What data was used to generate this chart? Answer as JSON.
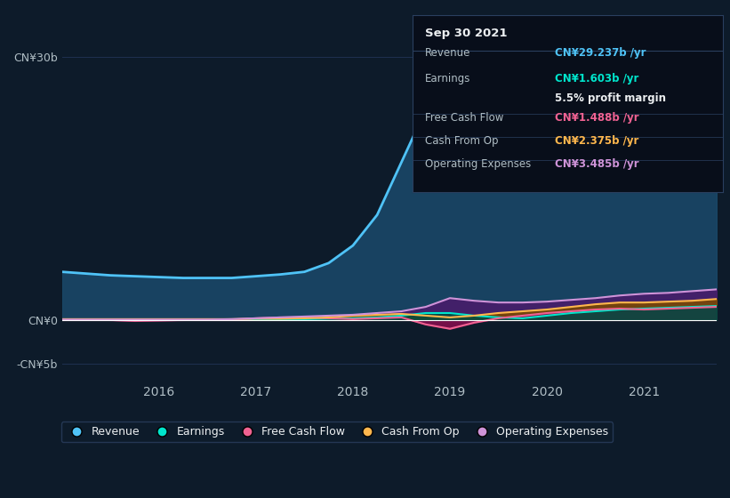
{
  "bg_color": "#0d1b2a",
  "plot_bg_color": "#0d1b2a",
  "title_text": "Sep 30 2021",
  "tooltip": {
    "Revenue": {
      "value": "CN¥29.237b /yr",
      "color": "#4fc3f7"
    },
    "Earnings": {
      "value": "CN¥1.603b /yr",
      "color": "#00e5cc"
    },
    "profit_margin": "5.5% profit margin",
    "Free Cash Flow": {
      "value": "CN¥1.488b /yr",
      "color": "#f06292"
    },
    "Cash From Op": {
      "value": "CN¥2.375b /yr",
      "color": "#ffb74d"
    },
    "Operating Expenses": {
      "value": "CN¥3.485b /yr",
      "color": "#ce93d8"
    }
  },
  "years": [
    2015.0,
    2015.25,
    2015.5,
    2015.75,
    2016.0,
    2016.25,
    2016.5,
    2016.75,
    2017.0,
    2017.25,
    2017.5,
    2017.75,
    2018.0,
    2018.25,
    2018.5,
    2018.75,
    2019.0,
    2019.25,
    2019.5,
    2019.75,
    2020.0,
    2020.25,
    2020.5,
    2020.75,
    2021.0,
    2021.25,
    2021.5,
    2021.75
  ],
  "revenue": [
    5.5,
    5.3,
    5.1,
    5.0,
    4.9,
    4.8,
    4.8,
    4.8,
    5.0,
    5.2,
    5.5,
    6.5,
    8.5,
    12.0,
    18.0,
    24.0,
    31.5,
    28.5,
    25.0,
    24.0,
    22.0,
    21.5,
    22.5,
    24.0,
    25.5,
    27.0,
    28.5,
    29.2
  ],
  "earnings": [
    0.05,
    0.05,
    0.05,
    0.05,
    0.05,
    0.05,
    0.05,
    0.05,
    0.1,
    0.1,
    0.1,
    0.15,
    0.2,
    0.3,
    0.5,
    0.8,
    0.8,
    0.5,
    0.3,
    0.2,
    0.5,
    0.8,
    1.0,
    1.2,
    1.3,
    1.4,
    1.5,
    1.6
  ],
  "free_cash_flow": [
    0.05,
    0.05,
    0.0,
    -0.1,
    -0.05,
    0.0,
    0.05,
    0.05,
    0.2,
    0.3,
    0.3,
    0.2,
    0.1,
    0.2,
    0.3,
    -0.5,
    -1.0,
    -0.3,
    0.2,
    0.5,
    0.8,
    1.0,
    1.2,
    1.3,
    1.2,
    1.3,
    1.4,
    1.5
  ],
  "cash_from_op": [
    0.1,
    0.1,
    0.1,
    0.1,
    0.1,
    0.1,
    0.1,
    0.1,
    0.15,
    0.15,
    0.2,
    0.3,
    0.5,
    0.6,
    0.7,
    0.5,
    0.3,
    0.5,
    0.8,
    1.0,
    1.2,
    1.5,
    1.8,
    2.0,
    2.0,
    2.1,
    2.2,
    2.4
  ],
  "operating_expenses": [
    0.05,
    0.05,
    0.05,
    0.05,
    0.05,
    0.05,
    0.05,
    0.1,
    0.2,
    0.3,
    0.4,
    0.5,
    0.6,
    0.8,
    1.0,
    1.5,
    2.5,
    2.2,
    2.0,
    2.0,
    2.1,
    2.3,
    2.5,
    2.8,
    3.0,
    3.1,
    3.3,
    3.5
  ],
  "revenue_color": "#4fc3f7",
  "revenue_fill": "#1a4a6b",
  "earnings_color": "#00e5cc",
  "earnings_fill": "#004d40",
  "free_cash_flow_color": "#f06292",
  "free_cash_flow_fill": "#880e4f",
  "cash_from_op_color": "#ffb74d",
  "cash_from_op_fill": "#7c4a00",
  "operating_expenses_color": "#ce93d8",
  "operating_expenses_fill": "#4a1a6b",
  "ytick_labels": [
    "-CN¥5b",
    "CN¥0",
    "CN¥30b"
  ],
  "ytick_values": [
    -5,
    0,
    30
  ],
  "ylim": [
    -7,
    35
  ],
  "xtick_labels": [
    "2016",
    "2017",
    "2018",
    "2019",
    "2020",
    "2021"
  ],
  "xtick_values": [
    2016,
    2017,
    2018,
    2019,
    2020,
    2021
  ],
  "legend_labels": [
    "Revenue",
    "Earnings",
    "Free Cash Flow",
    "Cash From Op",
    "Operating Expenses"
  ],
  "legend_colors": [
    "#4fc3f7",
    "#00e5cc",
    "#f06292",
    "#ffb74d",
    "#ce93d8"
  ],
  "grid_color": "#1e3050",
  "zero_line_color": "#ffffff",
  "font_color": "#b0bec5",
  "font_color_bright": "#eceff1",
  "tooltip_bg": "#080e1a",
  "tooltip_border": "#2a3f5f"
}
